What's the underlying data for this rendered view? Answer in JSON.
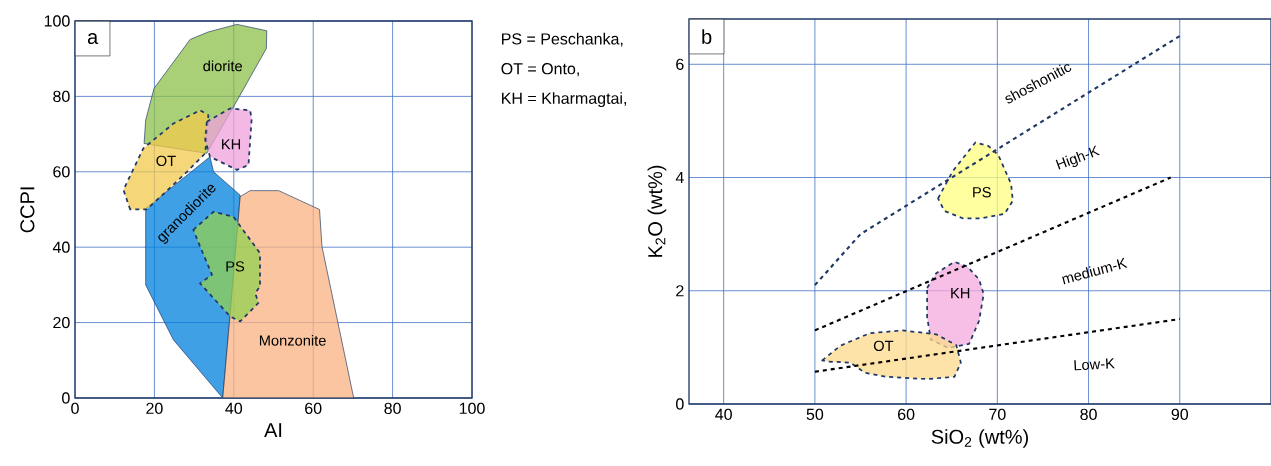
{
  "chart_data": [
    {
      "type": "line",
      "xlabel": "AI",
      "ylabel": "CCPI",
      "xlim": [
        0,
        100
      ],
      "ylim": [
        0,
        100
      ],
      "xticks": [
        0,
        20,
        40,
        60,
        80,
        100
      ],
      "yticks": [
        0,
        20,
        40,
        60,
        80,
        100
      ],
      "grid": true,
      "series": [
        {
          "type": "area",
          "color": "#8cbf4a",
          "line_style": "solid",
          "x": [
            17.8,
            19.9,
            29.0,
            33.6,
            40.8,
            48.3,
            48.2,
            39.9,
            33.2,
            17.4
          ],
          "values": [
            73.7,
            82.1,
            95.1,
            97.1,
            99.1,
            97.4,
            92.7,
            77.2,
            64.9,
            67.5
          ]
        },
        {
          "type": "area",
          "color": "#0080dc",
          "line_style": "solid",
          "x": [
            34.0,
            34.9,
            41.6,
            39.1,
            37.2,
            24.8,
            17.8,
            17.8
          ],
          "values": [
            64.0,
            60.0,
            53.8,
            21.6,
            0,
            15.4,
            30.0,
            50.3
          ]
        },
        {
          "type": "area",
          "color": "#fbb282",
          "line_style": "solid",
          "x": [
            37.2,
            41.6,
            44.1,
            51.3,
            61.6,
            62.2,
            70.2
          ],
          "values": [
            0,
            53.4,
            55.0,
            55.0,
            50.0,
            40.2,
            0
          ]
        },
        {
          "type": "area",
          "color": "#f2c94c",
          "line_style": "dashed",
          "x": [
            13.9,
            12.2,
            17.2,
            24.8,
            31.5,
            33.6,
            32.8,
            28.2,
            18.1
          ],
          "values": [
            50.0,
            55.2,
            66.2,
            72.8,
            76.3,
            75.0,
            64.9,
            60.0,
            50.0
          ]
        },
        {
          "type": "area",
          "color": "#f0a0dc",
          "line_style": "dashed",
          "x": [
            33.2,
            39.1,
            44.1,
            44.5,
            43.7,
            40.8,
            34.0,
            32.8
          ],
          "values": [
            73.3,
            76.8,
            76.3,
            74.1,
            61.8,
            60.5,
            64.0,
            68.4
          ]
        },
        {
          "type": "area",
          "color": "#92d050",
          "line_style": "dashed",
          "x": [
            29.8,
            34.9,
            39.9,
            46.6,
            46.6,
            45.4,
            46.2,
            41.6,
            39.1,
            31.5,
            34.5,
            31.5
          ],
          "values": [
            44.6,
            49.4,
            48.1,
            38.4,
            29.6,
            27.8,
            25.2,
            20.3,
            21.6,
            30.4,
            32.7,
            40.2
          ]
        }
      ],
      "annotations": [
        "a",
        "PS = Peschanka,",
        "OT = Onto,",
        "KH = Kharmagtai,",
        "diorite",
        "granodiorite",
        "OT",
        "KH",
        "PS",
        "Monzonite"
      ]
    },
    {
      "type": "line",
      "xlabel": "SiO$_{2}$  (wt%)",
      "ylabel": "K$_{2}$O (wt%)",
      "xlim": [
        36.2,
        100
      ],
      "ylim": [
        0,
        6.8
      ],
      "xticks": [
        40,
        50,
        60,
        70,
        80,
        90
      ],
      "yticks": [
        0,
        2,
        4,
        6
      ],
      "grid": true,
      "series": [
        {
          "type": "area",
          "color": "#ffff80",
          "line_style": "dashed",
          "x": [
            63.5,
            65.1,
            67.6,
            69.0,
            70.1,
            71.5,
            71.7,
            70.8,
            68.3,
            66.2,
            64.2
          ],
          "values": [
            3.63,
            4.11,
            4.62,
            4.56,
            4.4,
            3.89,
            3.59,
            3.36,
            3.28,
            3.28,
            3.41
          ]
        },
        {
          "type": "area",
          "color": "#f4a9dc",
          "line_style": "dashed",
          "x": [
            62.3,
            63.3,
            65.3,
            66.7,
            68.0,
            68.5,
            68.0,
            66.9,
            64.6,
            62.7,
            62.3
          ],
          "values": [
            2.05,
            2.31,
            2.51,
            2.43,
            2.2,
            1.94,
            1.47,
            1.06,
            0.99,
            1.14,
            1.54
          ]
        },
        {
          "type": "area",
          "color": "#fdd98c",
          "line_style": "dashed",
          "x": [
            50.8,
            52.8,
            56.0,
            59.6,
            63.3,
            65.5,
            66.0,
            65.3,
            62.3,
            57.8,
            55.5,
            53.9,
            51.4
          ],
          "values": [
            0.77,
            1.03,
            1.25,
            1.3,
            1.23,
            1.04,
            0.73,
            0.48,
            0.44,
            0.48,
            0.55,
            0.73,
            0.75
          ]
        },
        {
          "color": "#1f3864",
          "line_style": "dashed",
          "x": [
            50,
            55,
            90
          ],
          "values": [
            2.1,
            3.0,
            6.5
          ]
        },
        {
          "color": "#000000",
          "line_style": "dashed",
          "x": [
            50,
            89
          ],
          "values": [
            1.3,
            4.0
          ]
        },
        {
          "color": "#000000",
          "line_style": "dashed",
          "x": [
            50,
            90
          ],
          "values": [
            0.57,
            1.5
          ]
        }
      ],
      "annotations": [
        "b",
        "shoshonitic",
        "High-K",
        "medium-K",
        "Low-K",
        "PS",
        "KH",
        "OT"
      ]
    }
  ]
}
